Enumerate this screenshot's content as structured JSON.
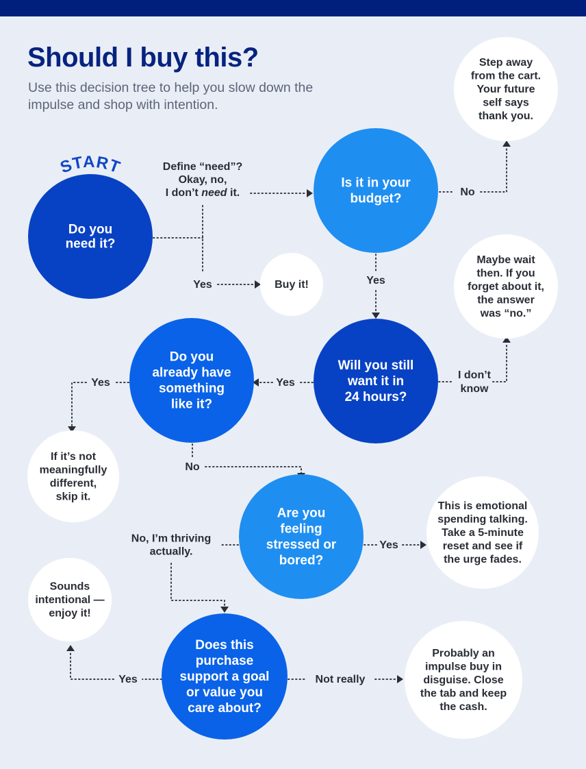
{
  "header": {
    "title": "Should I buy this?",
    "subtitle": "Use this decision tree to help you slow down the impulse and shop with intention."
  },
  "start_label": "START",
  "colors": {
    "topbar": "#001e7c",
    "background": "#e9eef6",
    "title": "#07237f",
    "dark_blue": "#0842c4",
    "mid_blue": "#0a62e8",
    "light_blue": "#1f8ef1",
    "answer_circle": "#ffffff"
  },
  "nodes": {
    "need": {
      "lines": [
        "Do you",
        "need it?"
      ],
      "color": "#0842c4"
    },
    "budget": {
      "lines": [
        "Is it in your",
        "budget?"
      ],
      "color": "#1f8ef1"
    },
    "step_away": {
      "lines": [
        "Step away",
        "from the cart.",
        "Your future",
        "self says",
        "thank you."
      ],
      "color": "#ffffff"
    },
    "buy_it": {
      "lines": [
        "Buy it!"
      ],
      "color": "#ffffff"
    },
    "maybe_wait": {
      "lines": [
        "Maybe wait",
        "then. If you",
        "forget about it,",
        "the answer",
        "was “no.”"
      ],
      "color": "#ffffff"
    },
    "still_want": {
      "lines": [
        "Will you still",
        "want it in",
        "24 hours?"
      ],
      "color": "#0842c4"
    },
    "already_have": {
      "lines": [
        "Do you",
        "already have",
        "something",
        "like it?"
      ],
      "color": "#0a62e8"
    },
    "skip_it": {
      "lines": [
        "If it’s not",
        "meaningfully",
        "different,",
        "skip it."
      ],
      "color": "#ffffff"
    },
    "stressed": {
      "lines": [
        "Are you",
        "feeling",
        "stressed or",
        "bored?"
      ],
      "color": "#1f8ef1"
    },
    "emotional": {
      "lines": [
        "This is emotional",
        "spending talking.",
        "Take a 5-minute",
        "reset and see if",
        "the urge fades."
      ],
      "color": "#ffffff"
    },
    "intentional": {
      "lines": [
        "Sounds",
        "intentional —",
        "enjoy it!"
      ],
      "color": "#ffffff"
    },
    "goal": {
      "lines": [
        "Does this",
        "purchase",
        "support a goal",
        "or value you",
        "care about?"
      ],
      "color": "#0a62e8"
    },
    "impulse": {
      "lines": [
        "Probably an",
        "impulse buy in",
        "disguise. Close",
        "the tab and keep",
        "the cash."
      ],
      "color": "#ffffff"
    }
  },
  "edges": {
    "need_no": {
      "lines": [
        "Define “need”?",
        "Okay, no,",
        "I don’t need it."
      ],
      "emphasis": "need"
    },
    "need_yes": {
      "lines": [
        "Yes"
      ]
    },
    "budget_no": {
      "lines": [
        "No"
      ]
    },
    "budget_yes": {
      "lines": [
        "Yes"
      ]
    },
    "still_want_idk": {
      "lines": [
        "I don’t",
        "know"
      ]
    },
    "still_want_yes": {
      "lines": [
        "Yes"
      ]
    },
    "already_have_yes": {
      "lines": [
        "Yes"
      ]
    },
    "already_have_no": {
      "lines": [
        "No"
      ]
    },
    "stressed_no": {
      "lines": [
        "No, I’m thriving",
        "actually."
      ]
    },
    "stressed_yes": {
      "lines": [
        "Yes"
      ]
    },
    "goal_yes": {
      "lines": [
        "Yes"
      ]
    },
    "goal_not_really": {
      "lines": [
        "Not really"
      ]
    }
  }
}
